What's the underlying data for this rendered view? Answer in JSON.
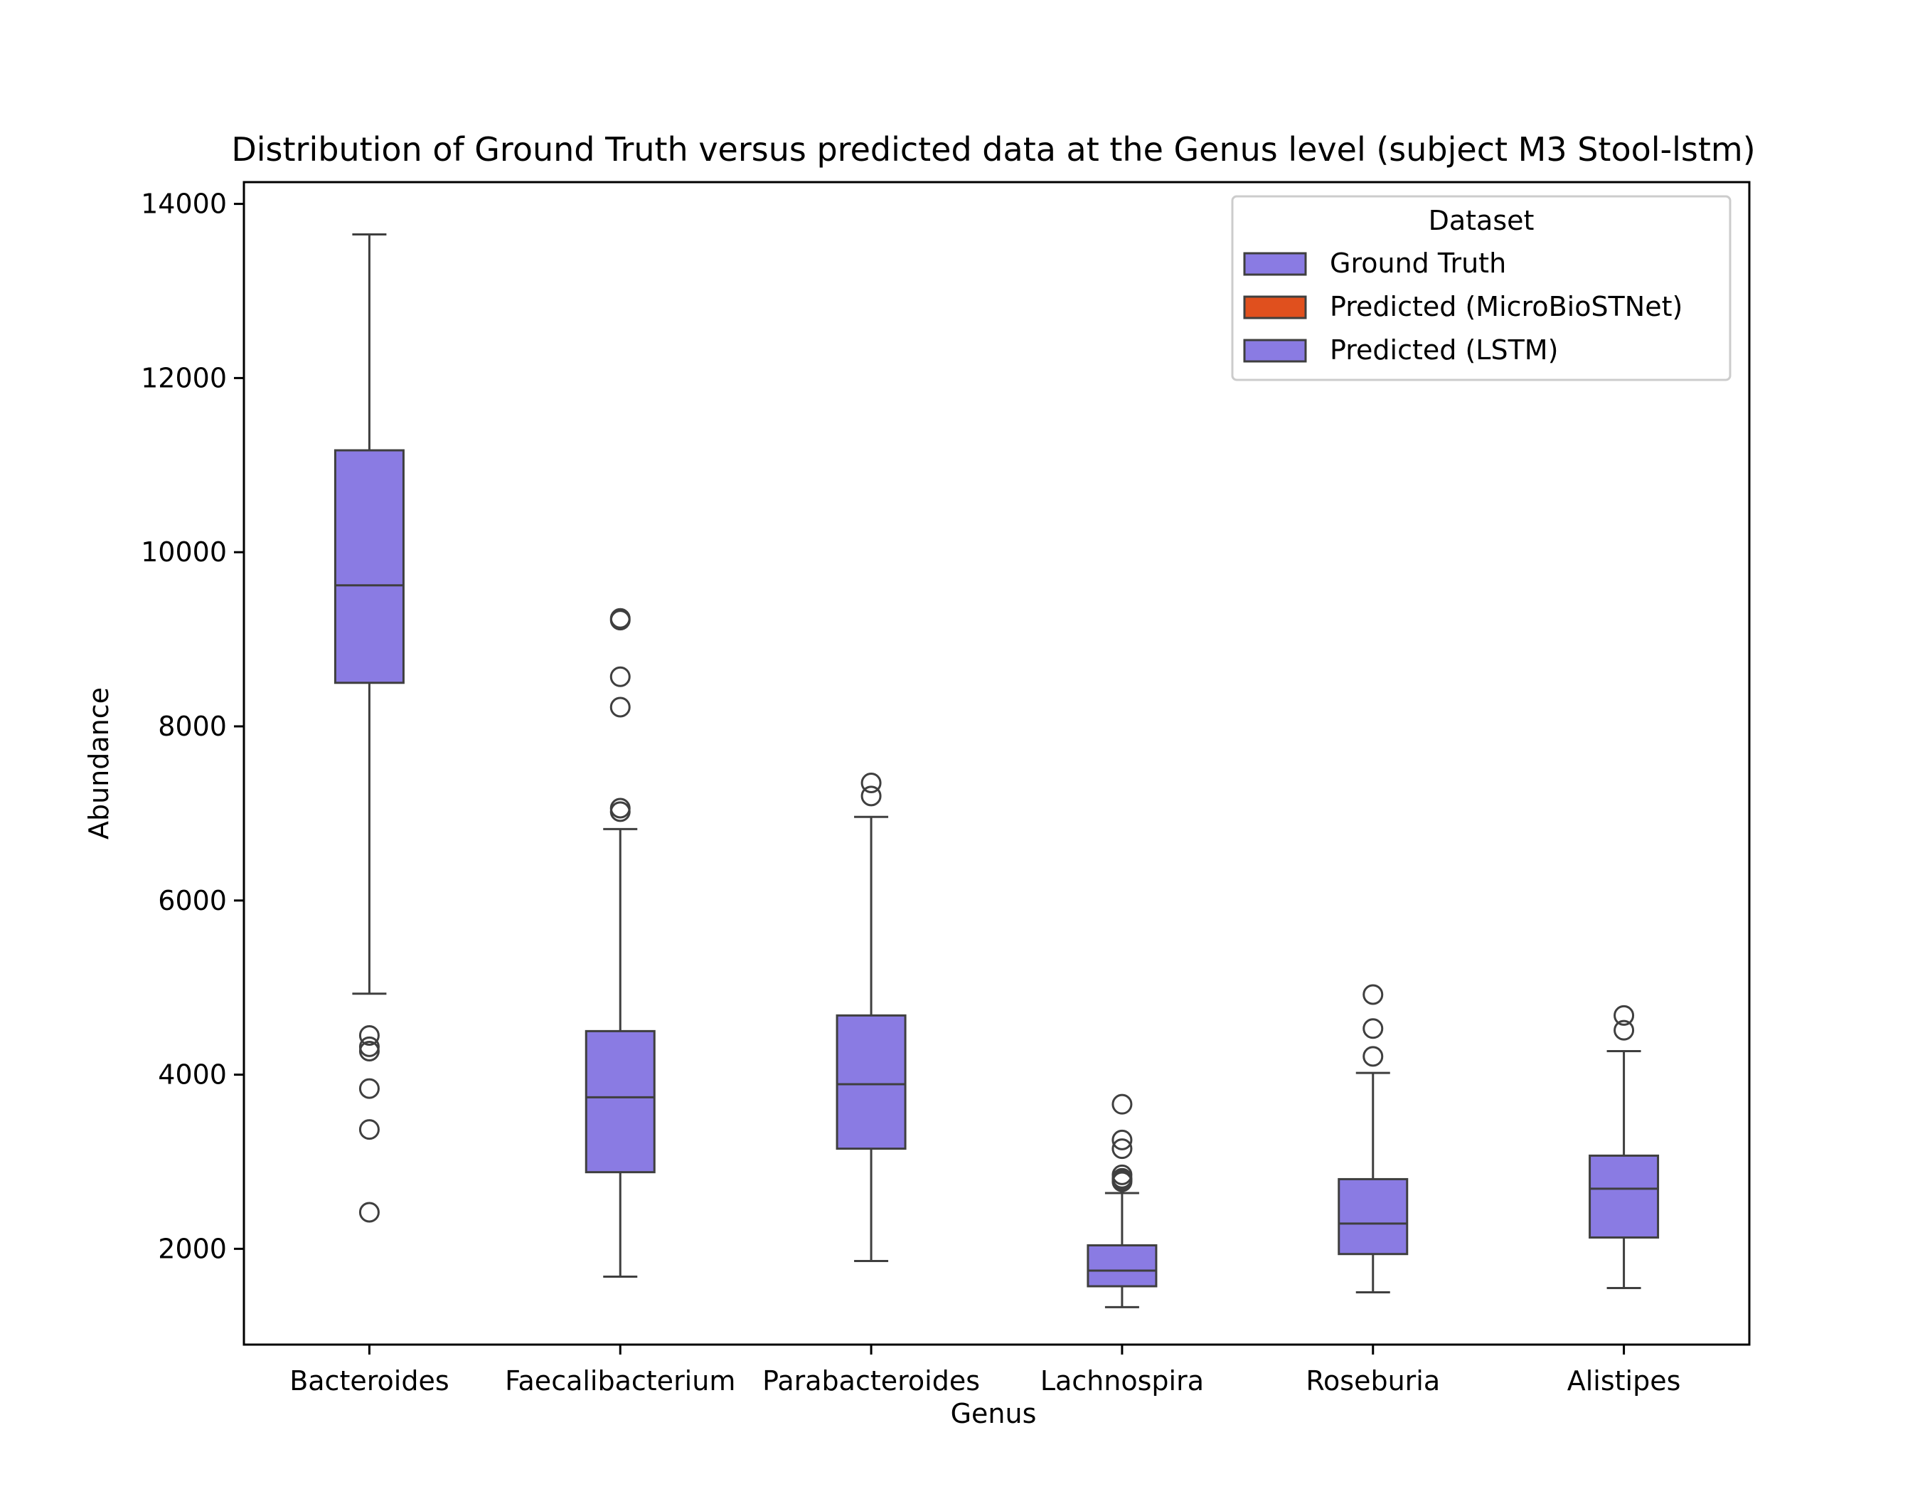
{
  "chart_data": {
    "type": "box",
    "title": "Distribution of Ground Truth versus predicted data at the Genus level (subject M3 Stool-lstm)",
    "xlabel": "Genus",
    "ylabel": "Abundance",
    "ylim": [
      900,
      14250
    ],
    "yticks": [
      2000,
      4000,
      6000,
      8000,
      10000,
      12000,
      14000
    ],
    "categories": [
      "Bacteroides",
      "Faecalibacterium",
      "Parabacteroides",
      "Lachnospira",
      "Roseburia",
      "Alistipes"
    ],
    "legend": {
      "title": "Dataset",
      "position": "top-right",
      "entries": [
        {
          "name": "Ground Truth",
          "color": "#8a7be3"
        },
        {
          "name": "Predicted (MicroBioSTNet)",
          "color": "#e0501e"
        },
        {
          "name": "Predicted (LSTM)",
          "color": "#8a7be3"
        }
      ]
    },
    "box_color": "#8a7be3",
    "line_color": "#3f3f3f",
    "boxes": [
      {
        "category": "Bacteroides",
        "whisker_low": 4930,
        "q1": 8500,
        "median": 9620,
        "q3": 11170,
        "whisker_high": 13650,
        "outliers": [
          4450,
          4320,
          4270,
          3840,
          3370,
          2420
        ]
      },
      {
        "category": "Faecalibacterium",
        "whisker_low": 1680,
        "q1": 2880,
        "median": 3740,
        "q3": 4500,
        "whisker_high": 6820,
        "outliers": [
          9240,
          9220,
          8570,
          8220,
          7060,
          7020
        ]
      },
      {
        "category": "Parabacteroides",
        "whisker_low": 1860,
        "q1": 3150,
        "median": 3890,
        "q3": 4680,
        "whisker_high": 6960,
        "outliers": [
          7350,
          7200
        ]
      },
      {
        "category": "Lachnospira",
        "whisker_low": 1330,
        "q1": 1570,
        "median": 1750,
        "q3": 2040,
        "whisker_high": 2640,
        "outliers": [
          3660,
          3250,
          3150,
          2850,
          2810,
          2790,
          2770
        ]
      },
      {
        "category": "Roseburia",
        "whisker_low": 1500,
        "q1": 1940,
        "median": 2290,
        "q3": 2800,
        "whisker_high": 4020,
        "outliers": [
          4920,
          4530,
          4210
        ]
      },
      {
        "category": "Alistipes",
        "whisker_low": 1550,
        "q1": 2130,
        "median": 2690,
        "q3": 3070,
        "whisker_high": 4270,
        "outliers": [
          4680,
          4510
        ]
      }
    ]
  }
}
